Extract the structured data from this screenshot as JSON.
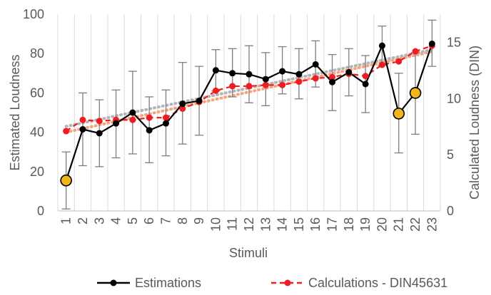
{
  "chart_data": {
    "type": "line",
    "xlabel": "Stimuli",
    "ylabel_left": "Estimated Loudness",
    "ylabel_right": "Calculated Loudness (DIN)",
    "ylim_left": [
      0,
      100
    ],
    "ylim_right": [
      0,
      17.5
    ],
    "yticks_left": [
      "0",
      "20",
      "40",
      "60",
      "80",
      "100"
    ],
    "yticks_right": [
      "0",
      "5",
      "10",
      "15"
    ],
    "categories": [
      "1",
      "2",
      "3",
      "4",
      "5",
      "6",
      "7",
      "8",
      "9",
      "10",
      "11",
      "12",
      "13",
      "14",
      "15",
      "16",
      "17",
      "18",
      "19",
      "20",
      "21",
      "22",
      "23"
    ],
    "grid": "vertical",
    "legend_position": "bottom",
    "series": [
      {
        "name": "Estimations",
        "axis": "left",
        "color": "#000000",
        "style": "solid",
        "values": [
          15.5,
          41.5,
          39.5,
          44.5,
          50,
          41,
          44.5,
          54.5,
          56,
          71.5,
          70,
          69.5,
          67,
          71,
          69.5,
          74.5,
          65.5,
          70.5,
          64.5,
          84,
          49.5,
          60,
          85
        ],
        "error_low": [
          1,
          23,
          22.5,
          27,
          29,
          24.5,
          28,
          34,
          38.5,
          61,
          58,
          55,
          53.5,
          59.5,
          57,
          63,
          51,
          58.5,
          50,
          74,
          29.5,
          39,
          73.5
        ],
        "error_high": [
          30,
          60,
          56.5,
          61.5,
          71,
          58,
          61.5,
          75.5,
          73.5,
          82,
          82.5,
          84,
          80.5,
          83.5,
          82.5,
          86.5,
          79.5,
          82.5,
          79,
          94,
          70,
          80.5,
          97
        ],
        "highlighted_points": [
          1,
          21,
          22
        ],
        "highlight_color": "#f2b51b"
      },
      {
        "name": "Calculations - DIN45631",
        "axis": "right",
        "color": "#ee1d23",
        "style": "dashed",
        "values": [
          7.1,
          8.1,
          8.0,
          8.1,
          8.1,
          8.3,
          8.3,
          9.1,
          9.7,
          10.7,
          11.1,
          11.1,
          11.2,
          11.2,
          11.5,
          11.8,
          11.9,
          12.2,
          12.0,
          13.0,
          13.3,
          14.2,
          14.7
        ]
      }
    ],
    "trendlines": [
      {
        "of": "Estimations",
        "color": "#f4a57e",
        "style": "dotted",
        "start": 40,
        "end": 81
      },
      {
        "of": "Calculations - DIN45631",
        "color": "#b4b4b4",
        "style": "dotted",
        "start": 43,
        "end": 82
      }
    ]
  }
}
